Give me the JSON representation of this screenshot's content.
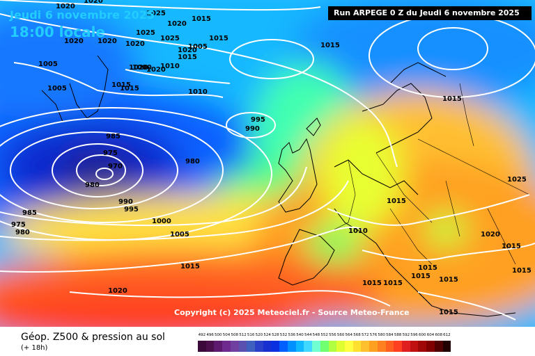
{
  "header": {
    "date": "Jeudi 6 novembre 2025",
    "time": "18:00 locale",
    "run": "Run ARPEGE 0 Z du Jeudi 6 novembre 2025"
  },
  "copyright": "Copyright (c) 2025 Meteociel.fr - Source Meteo-France",
  "footer": {
    "title": "Géop. Z500 & pression au sol",
    "subtitle": "(+ 18h)"
  },
  "legend": {
    "values": [
      "492",
      "496",
      "500",
      "504",
      "508",
      "512",
      "516",
      "520",
      "524",
      "528",
      "532",
      "536",
      "540",
      "544",
      "548",
      "552",
      "556",
      "560",
      "564",
      "568",
      "572",
      "576",
      "580",
      "584",
      "588",
      "592",
      "596",
      "600",
      "604",
      "608",
      "612"
    ],
    "colors": [
      "#3b0a3b",
      "#4b104b",
      "#5e1a6e",
      "#6e2a8e",
      "#7040a0",
      "#5a50b0",
      "#4060c0",
      "#2a40c8",
      "#1830d0",
      "#0a30e0",
      "#0060ff",
      "#0090ff",
      "#10b8ff",
      "#40d8ff",
      "#70ffd0",
      "#70ff70",
      "#b0ff40",
      "#e0ff30",
      "#ffff40",
      "#ffe030",
      "#ffc030",
      "#ffa020",
      "#ff8020",
      "#ff6020",
      "#ff4020",
      "#e02020",
      "#c01010",
      "#a00808",
      "#800000",
      "#500000",
      "#200000"
    ]
  },
  "pressure_labels": [
    "1020",
    "1020",
    "1025",
    "1025",
    "1015",
    "1020",
    "1020",
    "1020",
    "1025",
    "1020",
    "1015",
    "1005",
    "1020",
    "1015",
    "1010",
    "1005",
    "1015",
    "1020",
    "1020",
    "1015",
    "1000",
    "1005",
    "1010",
    "995",
    "990",
    "985",
    "975",
    "970",
    "980",
    "980",
    "990",
    "995",
    "1000",
    "1005",
    "1015",
    "985",
    "975",
    "980",
    "1015",
    "1015",
    "1010",
    "1015",
    "1015",
    "1015",
    "1025",
    "1020",
    "1015",
    "1015",
    "1020",
    "1015",
    "1015",
    "1015",
    "1015"
  ]
}
